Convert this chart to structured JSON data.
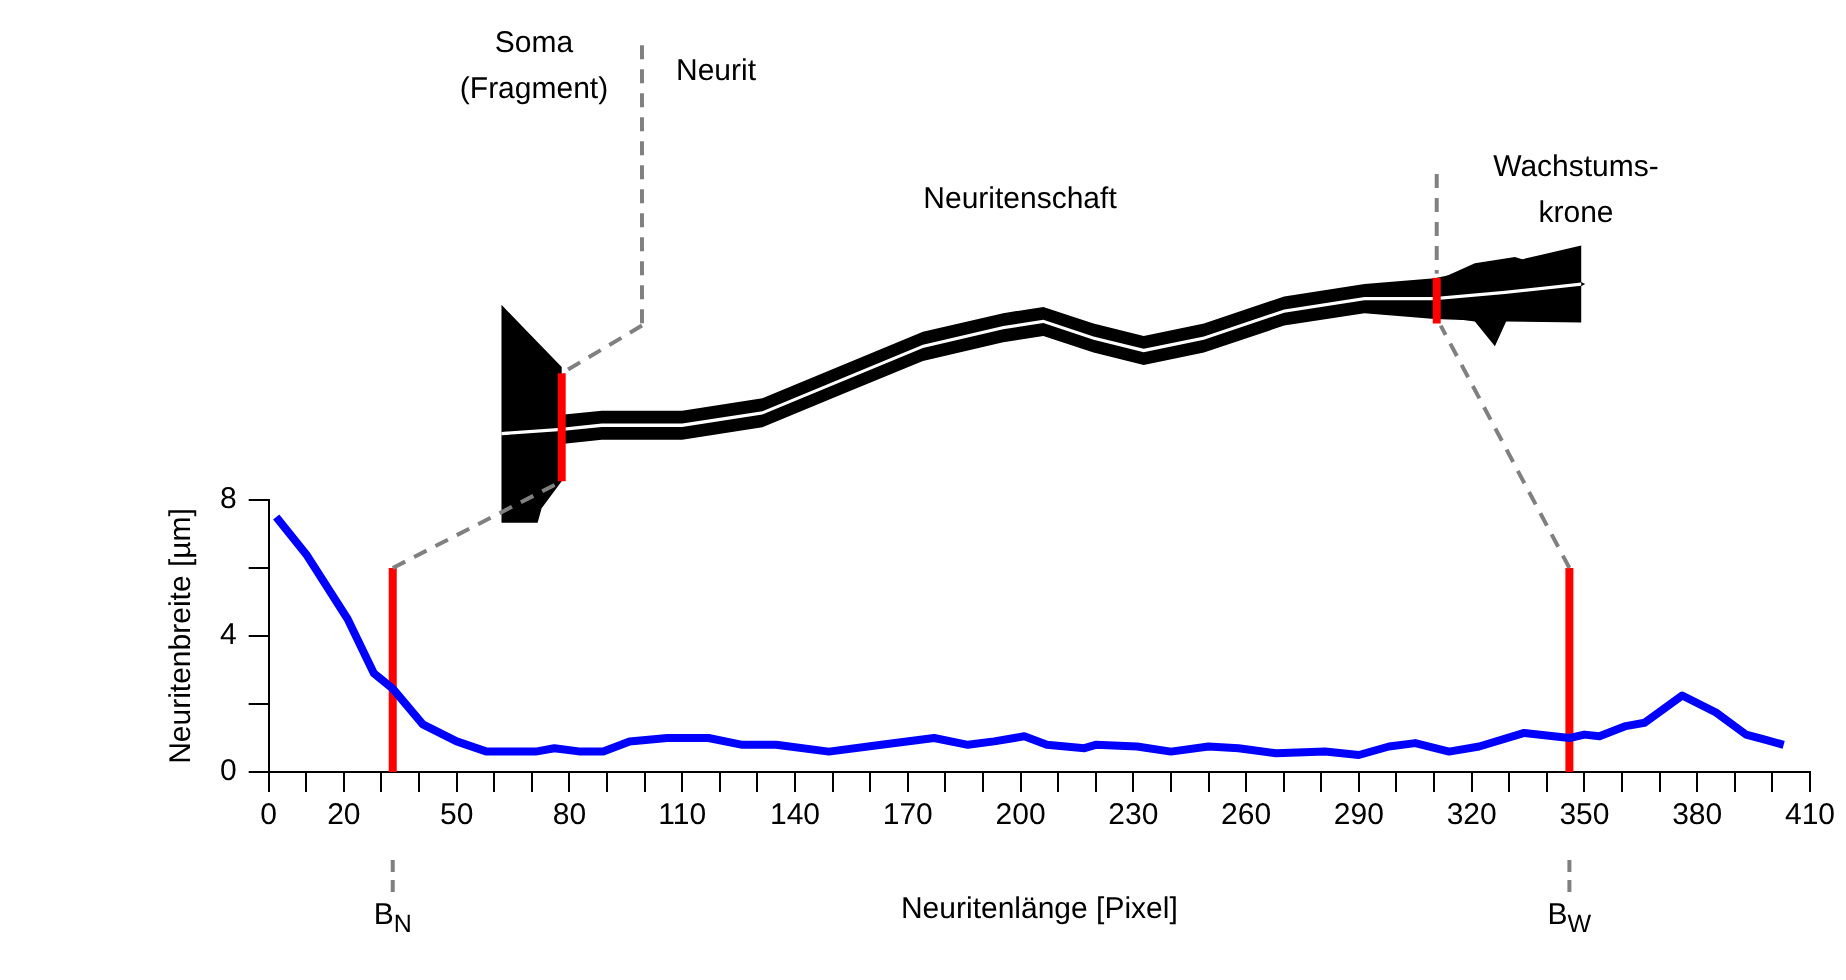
{
  "chart_data": {
    "type": "line",
    "xlabel": "Neuritenlänge [Pixel]",
    "ylabel": "Neuritenbreite [µm]",
    "xlim": [
      0,
      410
    ],
    "ylim": [
      0,
      8
    ],
    "xticks": [
      0,
      {
        "value": 10,
        "label": null
      },
      20,
      {
        "value": 30,
        "label": null
      },
      {
        "value": 40,
        "label": null
      },
      50,
      {
        "value": 60,
        "label": null
      },
      {
        "value": 70,
        "label": null
      },
      80,
      {
        "value": 90,
        "label": null
      },
      {
        "value": 100,
        "label": null
      },
      110,
      {
        "value": 120,
        "label": null
      },
      {
        "value": 130,
        "label": null
      },
      140,
      {
        "value": 150,
        "label": null
      },
      {
        "value": 160,
        "label": null
      },
      170,
      {
        "value": 180,
        "label": null
      },
      {
        "value": 190,
        "label": null
      },
      200,
      {
        "value": 210,
        "label": null
      },
      {
        "value": 220,
        "label": null
      },
      230,
      {
        "value": 240,
        "label": null
      },
      {
        "value": 250,
        "label": null
      },
      260,
      {
        "value": 270,
        "label": null
      },
      {
        "value": 280,
        "label": null
      },
      290,
      {
        "value": 300,
        "label": null
      },
      {
        "value": 310,
        "label": null
      },
      320,
      {
        "value": 330,
        "label": null
      },
      {
        "value": 340,
        "label": null
      },
      350,
      {
        "value": 360,
        "label": null
      },
      {
        "value": 370,
        "label": null
      },
      380,
      {
        "value": 390,
        "label": null
      },
      {
        "value": 400,
        "label": null
      },
      410
    ],
    "yticks": [
      0,
      {
        "value": 2,
        "label": null
      },
      4,
      {
        "value": 6,
        "label": null
      },
      8
    ],
    "marker": "none",
    "legend": false,
    "series": [
      {
        "color": "#0000ff",
        "x": [
          2,
          10,
          21,
          28,
          33,
          41,
          50,
          58,
          71,
          76,
          83,
          89,
          96,
          106,
          117,
          126,
          135,
          149,
          163,
          177,
          186,
          193,
          201,
          207,
          217,
          220,
          231,
          240,
          250,
          258,
          268,
          281,
          290,
          298,
          305,
          314,
          322,
          334,
          346,
          350,
          354,
          361,
          366,
          376,
          385,
          393,
          398,
          403
        ],
        "values": [
          7.5,
          6.4,
          4.5,
          2.9,
          2.45,
          1.4,
          0.9,
          0.6,
          0.6,
          0.7,
          0.6,
          0.6,
          0.9,
          1,
          1,
          0.8,
          0.8,
          0.6,
          0.8,
          1,
          0.8,
          0.9,
          1.05,
          0.8,
          0.7,
          0.8,
          0.75,
          0.6,
          0.75,
          0.7,
          0.55,
          0.6,
          0.5,
          0.75,
          0.85,
          0.6,
          0.75,
          1.15,
          1,
          1.1,
          1.05,
          1.35,
          1.45,
          2.25,
          1.75,
          1.1,
          0.95,
          0.8
        ]
      },
      {
        "color": "#ff0000",
        "x": [
          33,
          33
        ],
        "values": [
          0,
          6
        ]
      },
      {
        "color": "#ff0000",
        "x": [
          346,
          346
        ],
        "values": [
          0,
          6
        ]
      }
    ],
    "annotations": [
      "Soma (Fragment)",
      "Neurit",
      "Neuritenschaft",
      "Wachstums-krone",
      {
        "text": "B$_{N}$",
        "x": 33
      },
      {
        "text": "B$_{W}$",
        "x": 346
      }
    ]
  }
}
